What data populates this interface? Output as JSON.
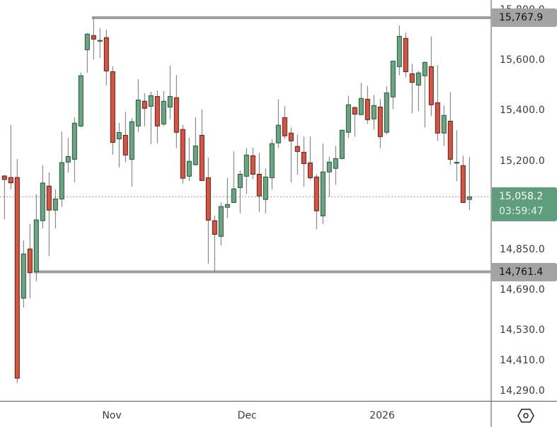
{
  "chart_data": {
    "type": "candlestick",
    "title": "",
    "xlabel": "",
    "ylabel": "",
    "ylim": [
      14260,
      15840
    ],
    "grid": false,
    "x_tick_labels": [
      "Nov",
      "Dec",
      "2026"
    ],
    "y_tick_labels": [
      "15,800.0",
      "15,600.0",
      "15,400.0",
      "15,200.0",
      "14,850.0",
      "14,690.0",
      "14,530.0",
      "14,410.0",
      "14,290.0"
    ],
    "y_tick_values": [
      15800,
      15600,
      15400,
      15200,
      14850,
      14690,
      14530,
      14410,
      14290
    ],
    "ohlc_fields": [
      "open",
      "high",
      "low",
      "close"
    ],
    "candles": [
      [
        15141,
        15144,
        14970,
        15127
      ],
      [
        15135,
        15343,
        15088,
        15114
      ],
      [
        15135,
        15208,
        14321,
        14340
      ],
      [
        14657,
        14886,
        14620,
        14832
      ],
      [
        14852,
        14951,
        14657,
        14758
      ],
      [
        14762,
        15068,
        14724,
        14967
      ],
      [
        14964,
        15183,
        14933,
        15113
      ],
      [
        15101,
        15155,
        14824,
        15006
      ],
      [
        15006,
        15088,
        14933,
        15050
      ],
      [
        15050,
        15317,
        15018,
        15194
      ],
      [
        15196,
        15292,
        15154,
        15218
      ],
      [
        15207,
        15373,
        15116,
        15350
      ],
      [
        15339,
        15550,
        15334,
        15538
      ],
      [
        15641,
        15707,
        15550,
        15703
      ],
      [
        15697,
        15768,
        15602,
        15683
      ],
      [
        15678,
        15726,
        15609,
        15678
      ],
      [
        15689,
        15720,
        15500,
        15557
      ],
      [
        15554,
        15575,
        15226,
        15274
      ],
      [
        15288,
        15351,
        15175,
        15313
      ],
      [
        15302,
        15396,
        15196,
        15224
      ],
      [
        15207,
        15370,
        15098,
        15356
      ],
      [
        15339,
        15524,
        15315,
        15442
      ],
      [
        15437,
        15468,
        15338,
        15409
      ],
      [
        15417,
        15474,
        15268,
        15459
      ],
      [
        15456,
        15480,
        15270,
        15339
      ],
      [
        15347,
        15477,
        15338,
        15437
      ],
      [
        15414,
        15578,
        15366,
        15456
      ],
      [
        15451,
        15541,
        15251,
        15314
      ],
      [
        15325,
        15344,
        15111,
        15132
      ],
      [
        15140,
        15292,
        15122,
        15199
      ],
      [
        15186,
        15373,
        15181,
        15260
      ],
      [
        15302,
        15404,
        15123,
        15123
      ],
      [
        15134,
        15214,
        14794,
        14966
      ],
      [
        14964,
        14983,
        14761.4,
        14910
      ],
      [
        14902,
        15036,
        14866,
        15020
      ],
      [
        15017,
        15134,
        14975,
        15028
      ],
      [
        15036,
        15238,
        15035,
        15090
      ],
      [
        15095,
        15162,
        14994,
        15148
      ],
      [
        15140,
        15252,
        15070,
        15224
      ],
      [
        15221,
        15253,
        15129,
        15148
      ],
      [
        15148,
        15232,
        14998,
        15062
      ],
      [
        15048,
        15171,
        14992,
        15137
      ],
      [
        15134,
        15286,
        15087,
        15269
      ],
      [
        15272,
        15445,
        15252,
        15342
      ],
      [
        15372,
        15417,
        15288,
        15300
      ],
      [
        15311,
        15333,
        15115,
        15280
      ],
      [
        15258,
        15305,
        15146,
        15238
      ],
      [
        15235,
        15297,
        15098,
        15190
      ],
      [
        15193,
        15297,
        15126,
        15134
      ],
      [
        15137,
        15148,
        14930,
        15003
      ],
      [
        14983,
        15269,
        14950,
        15157
      ],
      [
        15157,
        15218,
        15059,
        15196
      ],
      [
        15171,
        15260,
        15106,
        15210
      ],
      [
        15210,
        15325,
        15207,
        15322
      ],
      [
        15314,
        15459,
        15291,
        15423
      ],
      [
        15412,
        15417,
        15297,
        15386
      ],
      [
        15384,
        15510,
        15384,
        15448
      ],
      [
        15445,
        15498,
        15347,
        15364
      ],
      [
        15367,
        15462,
        15325,
        15420
      ],
      [
        15414,
        15445,
        15252,
        15297
      ],
      [
        15314,
        15496,
        15305,
        15470
      ],
      [
        15454,
        15596,
        15406,
        15596
      ],
      [
        15574,
        15737,
        15540,
        15694
      ],
      [
        15686,
        15709,
        15532,
        15554
      ],
      [
        15546,
        15585,
        15389,
        15512
      ],
      [
        15501,
        15557,
        15398,
        15549
      ],
      [
        15538,
        15594,
        15333,
        15591
      ],
      [
        15574,
        15694,
        15378,
        15423
      ],
      [
        15431,
        15580,
        15280,
        15311
      ],
      [
        15311,
        15420,
        15260,
        15381
      ],
      [
        15358,
        15473,
        15185,
        15207
      ],
      [
        15195,
        15322,
        15120,
        15195
      ],
      [
        15182,
        15221,
        15034,
        15036
      ],
      [
        15048,
        15216,
        15006,
        15058.2
      ]
    ],
    "horizontal_lines": [
      {
        "value": 15767.9,
        "label": "15,767.9"
      },
      {
        "value": 14761.4,
        "label": "14,761.4"
      }
    ],
    "last_price": {
      "value": 15058.2,
      "label": "15,058.2",
      "countdown": "03:59:47"
    },
    "colors": {
      "up_body": "#6ba583",
      "up_border": "#225437",
      "down_body": "#d75442",
      "down_border": "#5b1a13",
      "wick": "#737375",
      "level_line": "#9e9e9e",
      "last_price_box": "#5e9e7c",
      "level_box": "#a3a3a3"
    }
  },
  "toolbar": {
    "settings_icon": "hexagon-settings-icon"
  }
}
